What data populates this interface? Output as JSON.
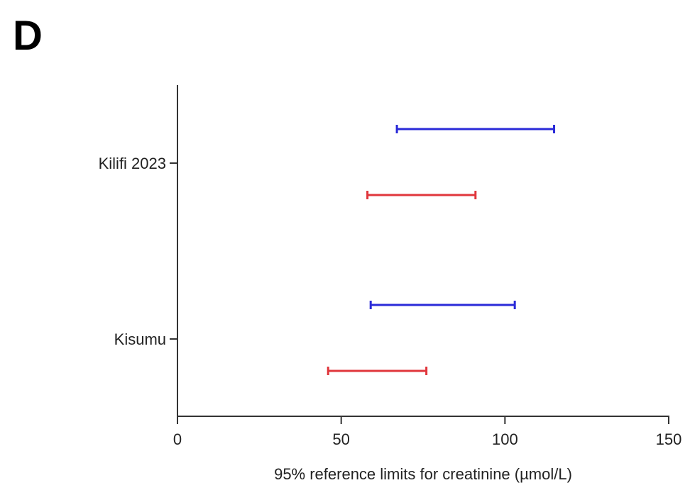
{
  "chart_data": {
    "type": "range",
    "panel_label": "D",
    "x_label": "95% reference limits for creatinine (µmol/L)",
    "categories": [
      "Kilifi 2023",
      "Kisumu"
    ],
    "series": [
      {
        "color": "#2a2ad8",
        "low": [
          67,
          59
        ],
        "high": [
          115,
          103
        ]
      },
      {
        "color": "#e0363c",
        "low": [
          58,
          46
        ],
        "high": [
          91,
          76
        ]
      }
    ],
    "xlim": [
      0,
      150
    ],
    "xticks": [
      0,
      50,
      100,
      150
    ]
  }
}
